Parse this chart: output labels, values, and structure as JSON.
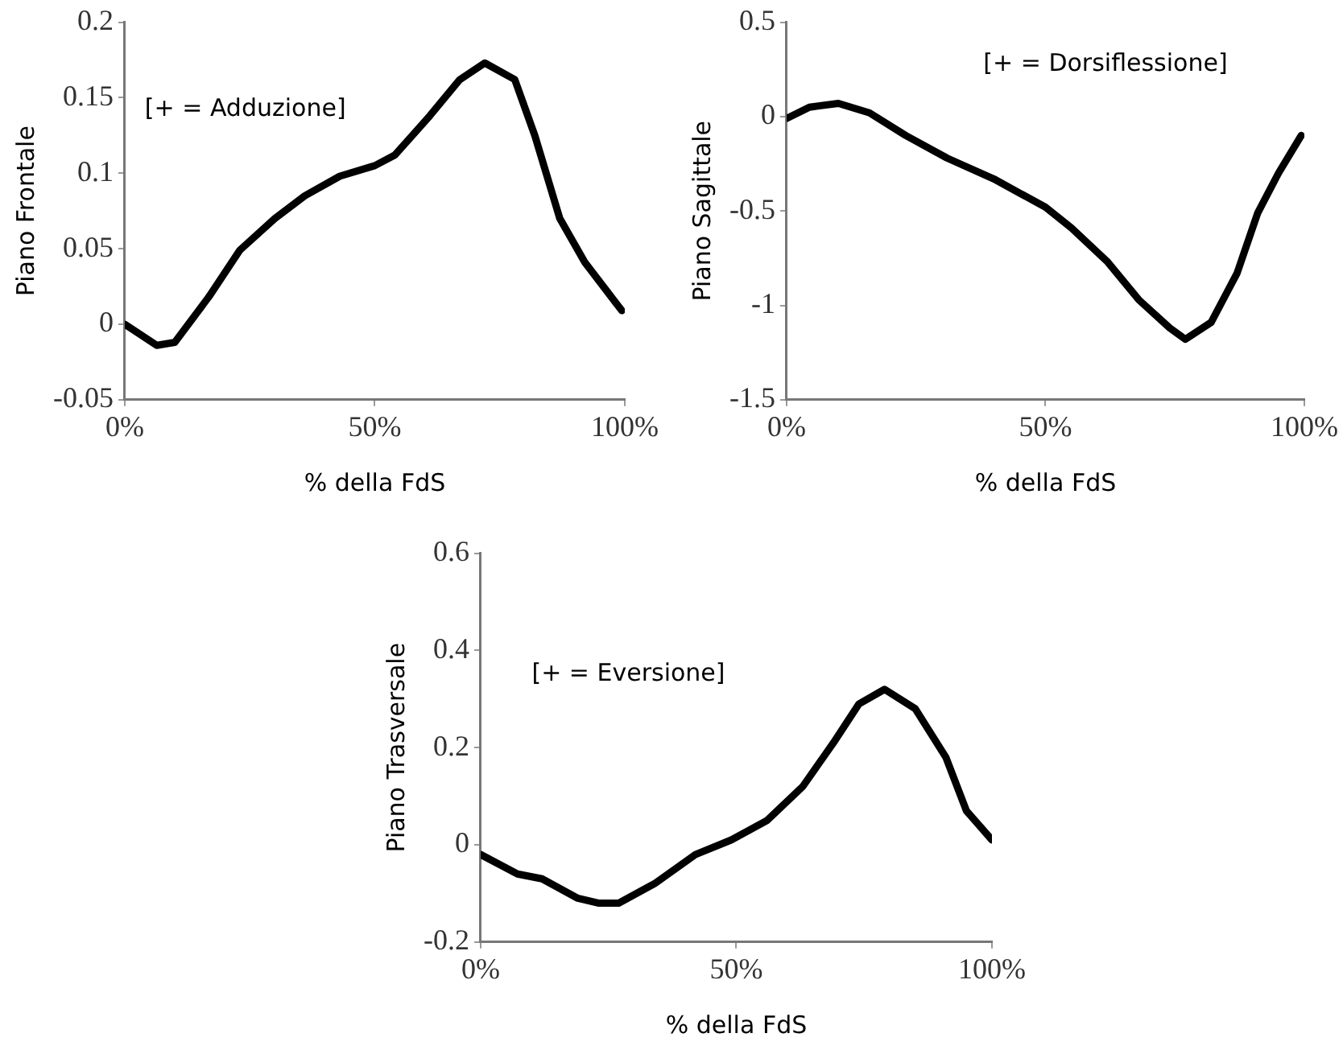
{
  "chart_data": [
    {
      "type": "line",
      "xlabel": "% della FdS",
      "ylabel": "Piano Frontale",
      "annotations": [
        "[+ = Adduzione]"
      ],
      "xlim": [
        0,
        100
      ],
      "xticks": [
        {
          "value": 0,
          "label": "0%"
        },
        {
          "value": 50,
          "label": "50%"
        },
        {
          "value": 100,
          "label": "100%"
        }
      ],
      "ylim": [
        -0.05,
        0.2
      ],
      "yticks": [
        -0.05,
        0,
        0.05,
        0.1,
        0.15,
        0.2
      ],
      "grid": false,
      "legend": false,
      "marker": "none",
      "line_style": "solid",
      "series": [
        {
          "color": "#000000",
          "x": [
            0,
            6.4,
            10,
            17,
            23,
            30,
            36,
            43,
            50,
            54,
            61,
            67,
            72,
            78,
            82,
            87,
            92,
            99.4
          ],
          "values": [
            0,
            -0.014,
            -0.012,
            0.019,
            0.049,
            0.07,
            0.085,
            0.098,
            0.105,
            0.112,
            0.138,
            0.162,
            0.173,
            0.162,
            0.125,
            0.07,
            0.041,
            0.009
          ]
        }
      ]
    },
    {
      "type": "line",
      "xlabel": "% della FdS",
      "ylabel": "Piano Sagittale",
      "annotations": [
        "[+ = Dorsiflessione]"
      ],
      "xlim": [
        0,
        100
      ],
      "xticks": [
        {
          "value": 0,
          "label": "0%"
        },
        {
          "value": 50,
          "label": "50%"
        },
        {
          "value": 100,
          "label": "100%"
        }
      ],
      "ylim": [
        -1.5,
        0.5
      ],
      "yticks": [
        -1.5,
        -1,
        -0.5,
        0,
        0.5
      ],
      "grid": false,
      "legend": false,
      "marker": "none",
      "line_style": "solid",
      "series": [
        {
          "color": "#000000",
          "x": [
            0,
            4.4,
            10,
            16,
            23,
            31,
            40,
            50,
            55,
            62,
            68,
            74,
            77,
            82,
            87,
            91,
            95,
            99.4
          ],
          "values": [
            -0.01,
            0.05,
            0.07,
            0.02,
            -0.1,
            -0.22,
            -0.33,
            -0.48,
            -0.59,
            -0.77,
            -0.97,
            -1.12,
            -1.18,
            -1.09,
            -0.83,
            -0.51,
            -0.3,
            -0.1
          ]
        }
      ]
    },
    {
      "type": "line",
      "xlabel": "% della FdS",
      "ylabel": "Piano Trasversale",
      "annotations": [
        "[+ = Eversione]"
      ],
      "xlim": [
        0,
        100
      ],
      "xticks": [
        {
          "value": 0,
          "label": "0%"
        },
        {
          "value": 50,
          "label": "50%"
        },
        {
          "value": 100,
          "label": "100%"
        }
      ],
      "ylim": [
        -0.2,
        0.6
      ],
      "yticks": [
        -0.2,
        0,
        0.2,
        0.4,
        0.6
      ],
      "grid": false,
      "legend": false,
      "marker": "none",
      "line_style": "solid",
      "series": [
        {
          "color": "#000000",
          "x": [
            0,
            7.2,
            12,
            19,
            23,
            27,
            34,
            42,
            49,
            56,
            63,
            69,
            74,
            79,
            85,
            91,
            95,
            100
          ],
          "values": [
            -0.02,
            -0.06,
            -0.07,
            -0.11,
            -0.12,
            -0.12,
            -0.08,
            -0.02,
            0.01,
            0.05,
            0.12,
            0.21,
            0.29,
            0.32,
            0.28,
            0.18,
            0.07,
            0.01
          ]
        }
      ]
    }
  ]
}
